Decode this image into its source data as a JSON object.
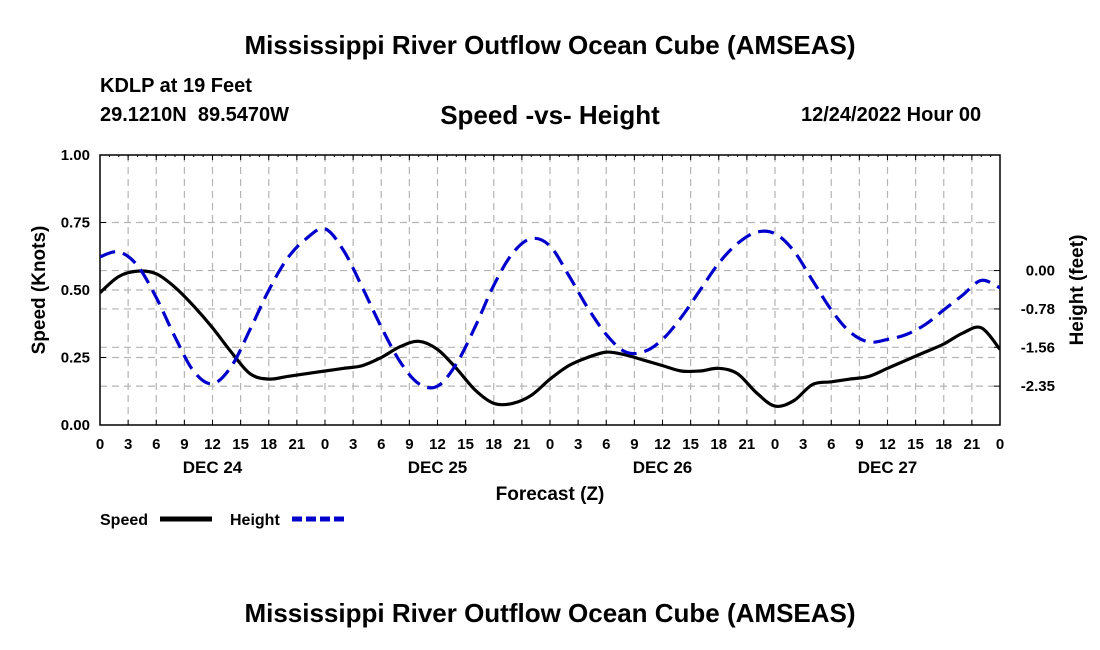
{
  "header": {
    "title": "Mississippi River Outflow Ocean Cube (AMSEAS)",
    "station": "KDLP at 19 Feet",
    "coords": "29.1210N  89.5470W",
    "subtitle": "Speed -vs- Height",
    "datestamp": "12/24/2022 Hour 00"
  },
  "footer": {
    "title": "Mississippi River Outflow Ocean Cube (AMSEAS)"
  },
  "chart_data": {
    "type": "line",
    "title": "Speed -vs- Height",
    "xlabel": "Forecast (Z)",
    "ylabel": "Speed (Knots)",
    "y2label": "Height (feet)",
    "xlim": [
      0,
      96
    ],
    "ylim": [
      0,
      1
    ],
    "y2lim": [
      -3.14,
      2.35
    ],
    "grid": true,
    "x_tick_labels": [
      "0",
      "3",
      "6",
      "9",
      "12",
      "15",
      "18",
      "21",
      "0",
      "3",
      "6",
      "9",
      "12",
      "15",
      "18",
      "21",
      "0",
      "3",
      "6",
      "9",
      "12",
      "15",
      "18",
      "21",
      "0",
      "3",
      "6",
      "9",
      "12",
      "15",
      "18",
      "21",
      "0"
    ],
    "day_labels": [
      {
        "hour": 12,
        "label": "DEC 24"
      },
      {
        "hour": 36,
        "label": "DEC 25"
      },
      {
        "hour": 60,
        "label": "DEC 26"
      },
      {
        "hour": 84,
        "label": "DEC 27"
      }
    ],
    "y_ticks": [
      "0.00",
      "0.25",
      "0.50",
      "0.75",
      "1.00"
    ],
    "y2_ticks": [
      "-2.35",
      "-1.56",
      "-0.78",
      "0.00"
    ],
    "series": [
      {
        "name": "Speed",
        "axis": "left",
        "color": "#000000",
        "dash": "solid",
        "x": [
          0,
          2,
          4,
          6,
          8,
          10,
          12,
          14,
          16,
          18,
          20,
          22,
          24,
          26,
          28,
          30,
          32,
          34,
          36,
          38,
          40,
          42,
          44,
          46,
          48,
          50,
          52,
          54,
          56,
          58,
          60,
          62,
          64,
          66,
          68,
          70,
          72,
          74,
          76,
          78,
          80,
          82,
          84,
          86,
          88,
          90,
          92,
          94,
          96
        ],
        "values": [
          0.49,
          0.55,
          0.57,
          0.56,
          0.51,
          0.44,
          0.36,
          0.27,
          0.19,
          0.17,
          0.18,
          0.19,
          0.2,
          0.21,
          0.22,
          0.25,
          0.29,
          0.31,
          0.28,
          0.21,
          0.13,
          0.08,
          0.08,
          0.11,
          0.17,
          0.22,
          0.25,
          0.27,
          0.26,
          0.24,
          0.22,
          0.2,
          0.2,
          0.21,
          0.19,
          0.12,
          0.07,
          0.09,
          0.15,
          0.16,
          0.17,
          0.18,
          0.21,
          0.24,
          0.27,
          0.3,
          0.34,
          0.36,
          0.28
        ]
      },
      {
        "name": "Height",
        "axis": "right",
        "color": "#0000cc",
        "dash": "dashed",
        "x": [
          0,
          2,
          4,
          6,
          8,
          10,
          12,
          14,
          16,
          18,
          20,
          22,
          24,
          26,
          28,
          30,
          32,
          34,
          36,
          38,
          40,
          42,
          44,
          46,
          48,
          50,
          52,
          54,
          56,
          58,
          60,
          62,
          64,
          66,
          68,
          70,
          72,
          74,
          76,
          78,
          80,
          82,
          84,
          86,
          88,
          90,
          92,
          94,
          96
        ],
        "values": [
          0.28,
          0.38,
          0.1,
          -0.55,
          -1.35,
          -2.05,
          -2.3,
          -1.95,
          -1.2,
          -0.4,
          0.25,
          0.65,
          0.85,
          0.4,
          -0.35,
          -1.15,
          -1.85,
          -2.3,
          -2.35,
          -1.9,
          -1.15,
          -0.3,
          0.35,
          0.65,
          0.5,
          -0.1,
          -0.75,
          -1.3,
          -1.65,
          -1.65,
          -1.4,
          -0.95,
          -0.4,
          0.15,
          0.55,
          0.78,
          0.75,
          0.4,
          -0.2,
          -0.8,
          -1.25,
          -1.45,
          -1.4,
          -1.3,
          -1.1,
          -0.8,
          -0.5,
          -0.2,
          -0.35
        ]
      }
    ],
    "legend": [
      {
        "name": "Speed",
        "color": "#000000",
        "dash": "solid"
      },
      {
        "name": "Height",
        "color": "#0000cc",
        "dash": "dashed"
      }
    ],
    "legend_position": "bottom-left"
  }
}
